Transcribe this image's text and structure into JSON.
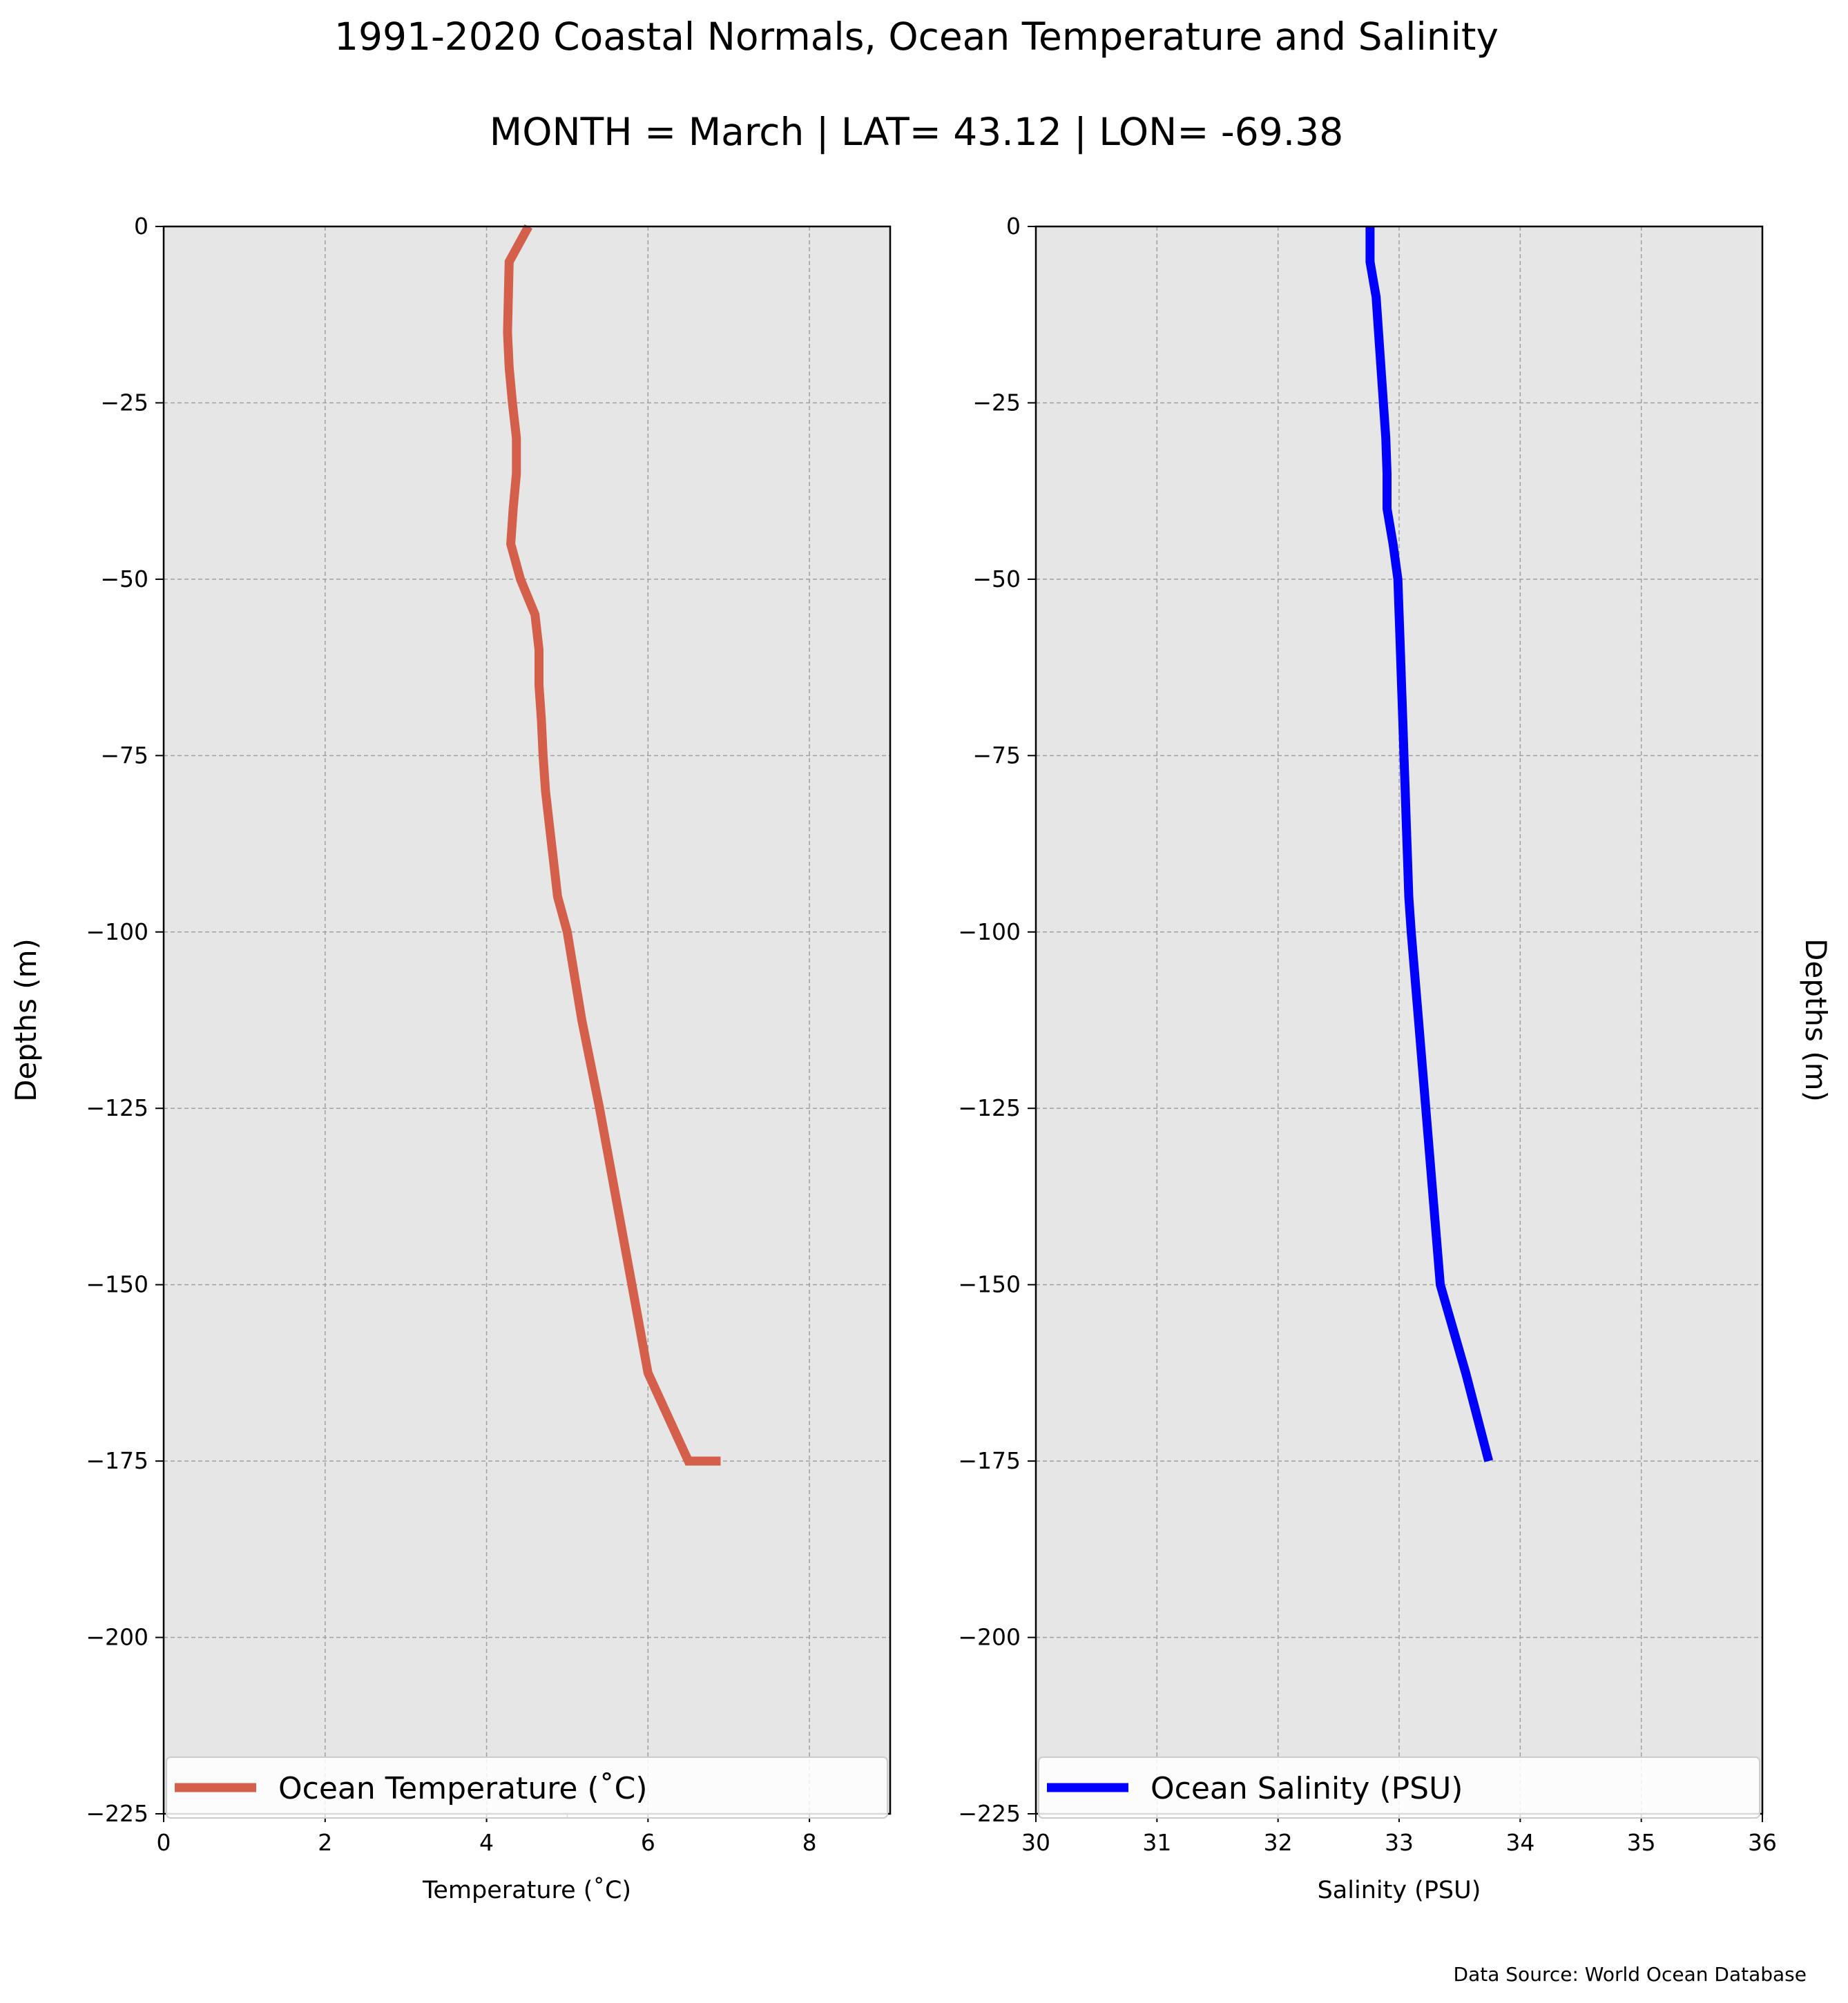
{
  "figure": {
    "title_line1": "1991-2020 Coastal Normals, Ocean Temperature and Salinity",
    "title_line2": "MONTH = March | LAT= 43.12 | LON= -69.38",
    "source": "Data Source: World Ocean Database",
    "background": "#ffffff",
    "axes_facecolor": "#e6e6e6",
    "grid_color": "#a0a0a0"
  },
  "chart_data": [
    {
      "type": "line",
      "orientation": "vertical-profile",
      "xlabel": "Temperature ($^\\circ$C)",
      "xlabel_display": "Temperature (˚C)",
      "ylabel": "Depths (m)",
      "ylabel_side": "left",
      "xlim": [
        0,
        9
      ],
      "ylim": [
        -225,
        0
      ],
      "xticks": [
        0,
        2,
        4,
        6,
        8
      ],
      "xtick_labels": [
        "0",
        "2",
        "4",
        "6",
        "8"
      ],
      "minor_xticks": [
        5
      ],
      "yticks": [
        0,
        -25,
        -50,
        -75,
        -100,
        -125,
        -150,
        -175,
        -200,
        -225
      ],
      "ytick_labels": [
        "0",
        "−25",
        "−50",
        "−75",
        "−100",
        "−125",
        "−150",
        "−175",
        "−200",
        "−225"
      ],
      "grid": true,
      "legend_position": "bottom",
      "series": [
        {
          "name": "Ocean Temperature (˚C)",
          "color": "#d45f4a",
          "x": [
            4.52,
            4.28,
            4.27,
            4.26,
            4.28,
            4.32,
            4.37,
            4.37,
            4.33,
            4.3,
            4.42,
            4.6,
            4.65,
            4.65,
            4.68,
            4.7,
            4.73,
            4.78,
            4.83,
            4.88,
            5.0,
            5.18,
            5.4,
            5.6,
            5.8,
            6.0,
            6.5,
            6.9
          ],
          "y": [
            0,
            -5,
            -10,
            -15,
            -20,
            -25,
            -30,
            -35,
            -40,
            -45,
            -50,
            -55,
            -60,
            -65,
            -70,
            -75,
            -80,
            -85,
            -90,
            -95,
            -100,
            -112.5,
            -125,
            -137.5,
            -150,
            -162.5,
            -175,
            -175
          ]
        }
      ]
    },
    {
      "type": "line",
      "orientation": "vertical-profile",
      "xlabel": "Salinity (PSU)",
      "ylabel": "Depths (m)",
      "ylabel_side": "right",
      "xlim": [
        30,
        36
      ],
      "ylim": [
        -225,
        0
      ],
      "xticks": [
        30,
        31,
        32,
        33,
        34,
        35,
        36
      ],
      "xtick_labels": [
        "30",
        "31",
        "32",
        "33",
        "34",
        "35",
        "36"
      ],
      "yticks": [
        0,
        -25,
        -50,
        -75,
        -100,
        -125,
        -150,
        -175,
        -200,
        -225
      ],
      "ytick_labels": [
        "0",
        "−25",
        "−50",
        "−75",
        "−100",
        "−125",
        "−150",
        "−175",
        "−200",
        "−225"
      ],
      "grid": true,
      "legend_position": "bottom",
      "series": [
        {
          "name": "Ocean Salinity (PSU)",
          "color": "#0000ff",
          "x": [
            32.76,
            32.76,
            32.81,
            32.83,
            32.85,
            32.87,
            32.89,
            32.9,
            32.9,
            32.95,
            32.99,
            33.0,
            33.01,
            33.02,
            33.03,
            33.04,
            33.05,
            33.06,
            33.07,
            33.08,
            33.1,
            33.16,
            33.22,
            33.28,
            33.34,
            33.55,
            33.74
          ],
          "y": [
            0,
            -5,
            -10,
            -15,
            -20,
            -25,
            -30,
            -35,
            -40,
            -45,
            -50,
            -55,
            -60,
            -65,
            -70,
            -75,
            -80,
            -85,
            -90,
            -95,
            -100,
            -112.5,
            -125,
            -137.5,
            -150,
            -162.5,
            -175
          ]
        }
      ]
    }
  ]
}
